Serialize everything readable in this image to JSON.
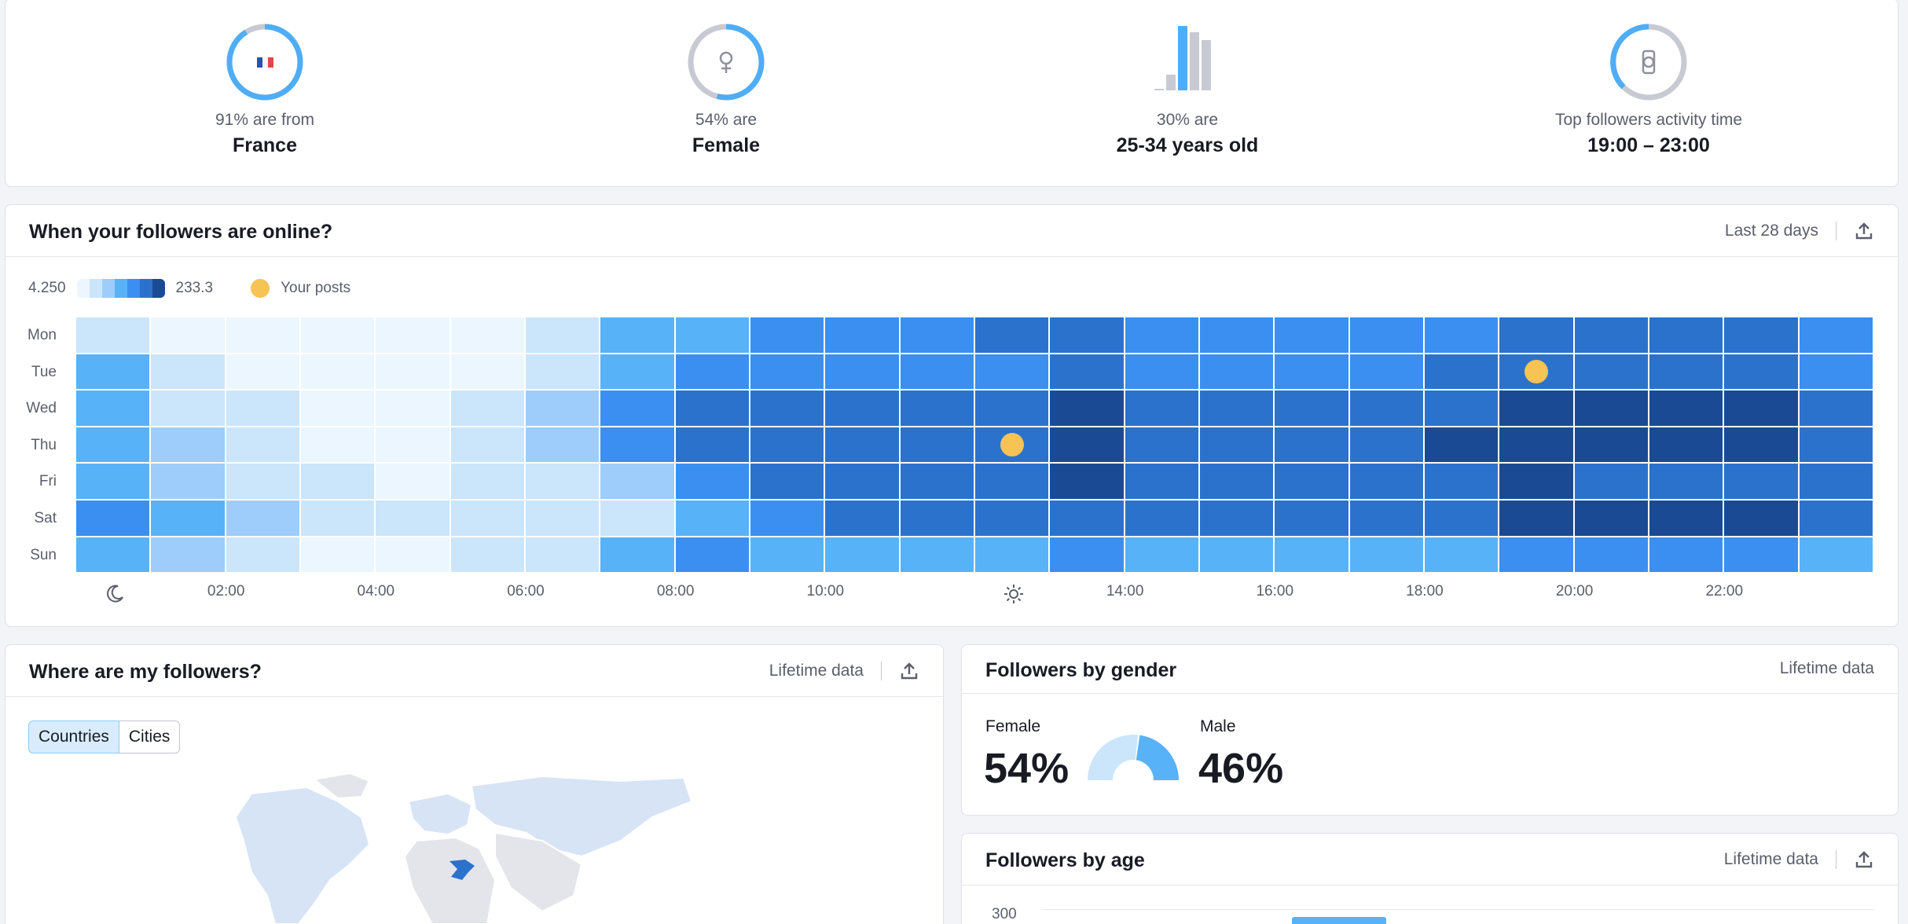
{
  "summary": {
    "country": {
      "label": "91% are from",
      "value": "France",
      "percent": 91
    },
    "gender": {
      "label": "54% are",
      "value": "Female",
      "percent": 54
    },
    "age": {
      "label": "30% are",
      "value": "25-34 years old"
    },
    "activity": {
      "label": "Top followers activity time",
      "value": "19:00 – 23:00"
    }
  },
  "online": {
    "title": "When your followers are online?",
    "period": "Last 28 days",
    "legend": {
      "min": "4.250",
      "max": "233.3",
      "posts_label": "Your posts"
    },
    "days": [
      "Mon",
      "Tue",
      "Wed",
      "Thu",
      "Fri",
      "Sat",
      "Sun"
    ],
    "hour_labels": [
      {
        "hour": 2,
        "text": "02:00"
      },
      {
        "hour": 4,
        "text": "04:00"
      },
      {
        "hour": 6,
        "text": "06:00"
      },
      {
        "hour": 8,
        "text": "08:00"
      },
      {
        "hour": 10,
        "text": "10:00"
      },
      {
        "hour": 14,
        "text": "14:00"
      },
      {
        "hour": 16,
        "text": "16:00"
      },
      {
        "hour": 18,
        "text": "18:00"
      },
      {
        "hour": 20,
        "text": "20:00"
      },
      {
        "hour": 22,
        "text": "22:00"
      }
    ],
    "palette": [
      "#ecf6fe",
      "#cbe5fb",
      "#9ecdfb",
      "#58b2f8",
      "#3a8ff0",
      "#2b72cc",
      "#1b4a94"
    ],
    "levels": [
      [
        1,
        0,
        0,
        0,
        0,
        0,
        1,
        3,
        3,
        4,
        4,
        4,
        5,
        5,
        4,
        4,
        4,
        4,
        4,
        5,
        5,
        5,
        5,
        4
      ],
      [
        3,
        1,
        0,
        0,
        0,
        0,
        1,
        3,
        4,
        4,
        4,
        4,
        4,
        5,
        4,
        4,
        4,
        4,
        5,
        5,
        5,
        5,
        5,
        4
      ],
      [
        3,
        1,
        1,
        0,
        0,
        1,
        2,
        4,
        5,
        5,
        5,
        5,
        5,
        6,
        5,
        5,
        5,
        5,
        5,
        6,
        6,
        6,
        6,
        5
      ],
      [
        3,
        2,
        1,
        0,
        0,
        1,
        2,
        4,
        5,
        5,
        5,
        5,
        5,
        6,
        5,
        5,
        5,
        5,
        6,
        6,
        6,
        6,
        6,
        5
      ],
      [
        3,
        2,
        1,
        1,
        0,
        1,
        1,
        2,
        4,
        5,
        5,
        5,
        5,
        6,
        5,
        5,
        5,
        5,
        5,
        6,
        5,
        5,
        5,
        5
      ],
      [
        4,
        3,
        2,
        1,
        1,
        1,
        1,
        1,
        3,
        4,
        5,
        5,
        5,
        5,
        5,
        5,
        5,
        5,
        5,
        6,
        6,
        6,
        6,
        5
      ],
      [
        3,
        2,
        1,
        0,
        0,
        1,
        1,
        3,
        4,
        3,
        3,
        3,
        3,
        4,
        3,
        3,
        3,
        3,
        3,
        4,
        4,
        4,
        4,
        3
      ]
    ],
    "posts": [
      {
        "day": 1,
        "hour": 19
      },
      {
        "day": 3,
        "hour": 12
      }
    ]
  },
  "where": {
    "title": "Where are my followers?",
    "period": "Lifetime data",
    "tabs": [
      "Countries",
      "Cities"
    ]
  },
  "gender": {
    "title": "Followers by gender",
    "period": "Lifetime data",
    "female_label": "Female",
    "female_value": "54%",
    "male_label": "Male",
    "male_value": "46%"
  },
  "age": {
    "title": "Followers by age",
    "period": "Lifetime data",
    "y_top": "300"
  }
}
